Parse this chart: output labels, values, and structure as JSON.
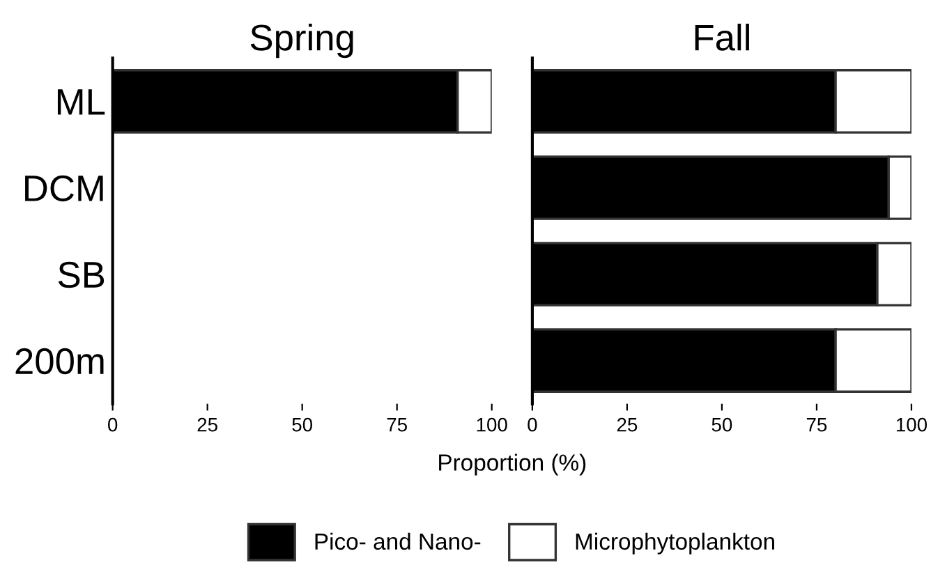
{
  "chart_data": [
    {
      "type": "bar",
      "orientation": "horizontal",
      "stacked": true,
      "title": "Spring",
      "xlabel": "Proportion (%)",
      "categories": [
        "ML",
        "DCM",
        "SB",
        "200m"
      ],
      "xlim": [
        0,
        100
      ],
      "xticks": [
        0,
        25,
        50,
        75,
        100
      ],
      "grid": false,
      "legend": "bottom",
      "series": [
        {
          "name": "Pico- and Nano-",
          "color": "#000000",
          "values": [
            91,
            null,
            null,
            null
          ]
        },
        {
          "name": "Microphytoplankton",
          "color": "#ffffff",
          "values": [
            9,
            null,
            null,
            null
          ]
        }
      ]
    },
    {
      "type": "bar",
      "orientation": "horizontal",
      "stacked": true,
      "title": "Fall",
      "categories": [
        null,
        null,
        null,
        null
      ],
      "xlim": [
        0,
        100
      ],
      "xticks": [
        0,
        25,
        50,
        75,
        100
      ],
      "grid": false,
      "tick_labels": "x",
      "series": [
        {
          "color": "#000000",
          "values": [
            80,
            94,
            91,
            80
          ]
        },
        {
          "color": "#ffffff",
          "values": [
            20,
            6,
            9,
            20
          ]
        }
      ]
    }
  ]
}
